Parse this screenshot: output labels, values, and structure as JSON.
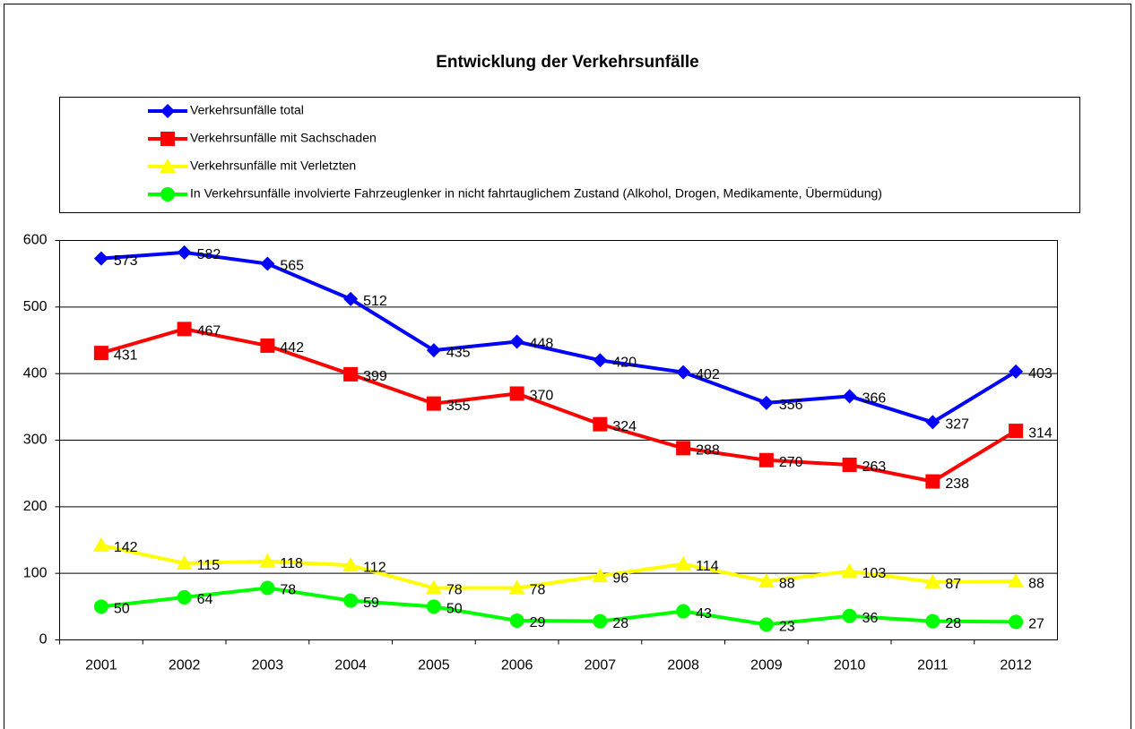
{
  "chart_data": {
    "type": "line",
    "title": "Entwicklung der Verkehrsunfälle",
    "categories": [
      "2001",
      "2002",
      "2003",
      "2004",
      "2005",
      "2006",
      "2007",
      "2008",
      "2009",
      "2010",
      "2011",
      "2012"
    ],
    "series": [
      {
        "name": "Verkehrsunfälle total",
        "color": "#0000ff",
        "marker": "diamond",
        "values": [
          573,
          582,
          565,
          512,
          435,
          448,
          420,
          402,
          356,
          366,
          327,
          403
        ]
      },
      {
        "name": "Verkehrsunfälle mit Sachschaden",
        "color": "#ff0000",
        "marker": "square",
        "values": [
          431,
          467,
          442,
          399,
          355,
          370,
          324,
          288,
          270,
          263,
          238,
          314
        ]
      },
      {
        "name": "Verkehrsunfälle mit Verletzten",
        "color": "#ffff00",
        "marker": "triangle",
        "values": [
          142,
          115,
          118,
          112,
          78,
          78,
          96,
          114,
          88,
          103,
          87,
          88
        ]
      },
      {
        "name": "In Verkehrsunfälle involvierte Fahrzeuglenker in nicht fahrtauglichem Zustand (Alkohol, Drogen, Medikamente, Übermüdung)",
        "color": "#00ff00",
        "marker": "circle",
        "values": [
          50,
          64,
          78,
          59,
          50,
          29,
          28,
          43,
          23,
          36,
          28,
          27
        ]
      }
    ],
    "ylim": [
      0,
      600
    ],
    "yticks": [
      0,
      100,
      200,
      300,
      400,
      500,
      600
    ],
    "grid": true
  }
}
